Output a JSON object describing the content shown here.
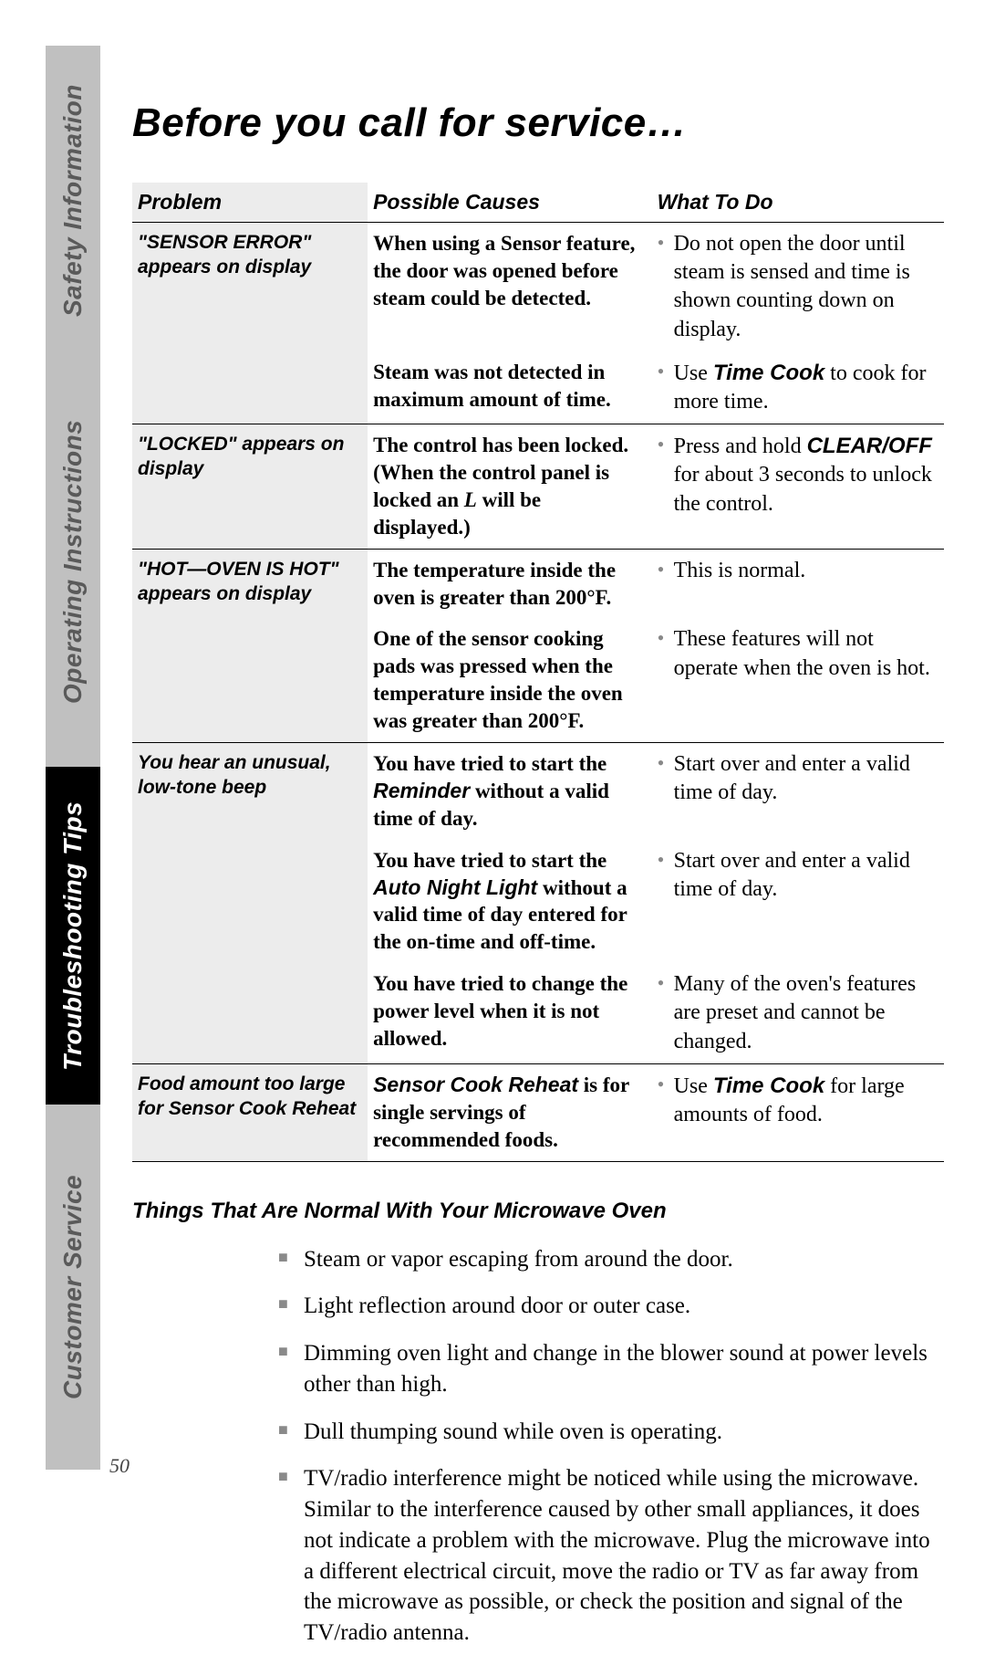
{
  "page_number": "50",
  "sidebar": {
    "tabs": [
      {
        "label": "Safety Information",
        "style": "gray",
        "cls": "safety"
      },
      {
        "label": "Operating Instructions",
        "style": "gray",
        "cls": "operating"
      },
      {
        "label": "Troubleshooting Tips",
        "style": "black",
        "cls": "trouble"
      },
      {
        "label": "Customer Service",
        "style": "gray",
        "cls": "customer"
      }
    ]
  },
  "title": "Before you call for service…",
  "table": {
    "headers": {
      "problem": "Problem",
      "cause": "Possible Causes",
      "do": "What To Do"
    },
    "rows": [
      {
        "section_top": true,
        "problem_html": "<span class='bold-sans'>\"SENSOR ERROR\"</span> appears on display",
        "cause_html": "When using a Sensor feature, the door was opened before steam could be detected.",
        "do_html": "Do not open the door until steam is sensed and time is shown counting down on display."
      },
      {
        "problem_html": "",
        "cause_html": "Steam was not detected in maximum amount of time.",
        "do_html": "Use <span class='bold-sans'>Time Cook</span> to cook for more time."
      },
      {
        "section_top": true,
        "problem_html": "<span class='bold-sans'>\"LOCKED\"</span> appears on display",
        "cause_html": "The control has been locked. (When the control panel is locked an <span class='bold-serif-i'>L</span> will be displayed.)",
        "do_html": "Press and hold <span class='bold-sans'>CLEAR/OFF</span> for about 3 seconds to unlock the control."
      },
      {
        "section_top": true,
        "problem_html": "<span class='bold-sans'>\"HOT—OVEN IS HOT\"</span> appears on display",
        "cause_html": "The temperature inside the oven is greater than 200°F.",
        "do_html": "This is normal."
      },
      {
        "problem_html": "",
        "cause_html": "One of the sensor cooking pads was pressed when the temperature inside the oven was greater than 200°F.",
        "do_html": "These features will not operate when the oven is hot."
      },
      {
        "section_top": true,
        "problem_html": "You hear an unusual, low-tone beep",
        "cause_html": "You have tried to start the <span class='bold-sans'>Reminder</span> without a valid time of day.",
        "do_html": "Start over and enter a valid time of day."
      },
      {
        "problem_html": "",
        "cause_html": "You have tried to start the <span class='bold-sans'>Auto Night Light</span> without a valid time of day entered for the on-time and off-time.",
        "do_html": "Start over and enter a valid time of day."
      },
      {
        "problem_html": "",
        "cause_html": "You have tried to change the power level when it is not allowed.",
        "do_html": "Many of the oven's features are preset and cannot be changed."
      },
      {
        "section_top": true,
        "last": true,
        "problem_html": "Food amount too large for Sensor Cook Reheat",
        "cause_html": "<span class='bold-sans'>Sensor Cook Reheat</span> is for single servings of recommended foods.",
        "do_html": "Use <span class='bold-sans'>Time Cook</span> for large amounts of food."
      }
    ]
  },
  "normal_section": {
    "heading": "Things That Are Normal With Your Microwave Oven",
    "items": [
      "Steam or vapor escaping from around the door.",
      "Light reflection around door or outer case.",
      "Dimming oven light and change in the blower sound at power levels other than high.",
      "Dull thumping sound while oven is operating.",
      "TV/radio interference might be noticed while using the microwave.  Similar to the interference caused by other small appliances, it does not indicate a problem with the microwave. Plug the microwave into a different electrical circuit, move the radio or TV as far away from the microwave as possible, or check the position and signal of the TV/radio antenna."
    ]
  }
}
